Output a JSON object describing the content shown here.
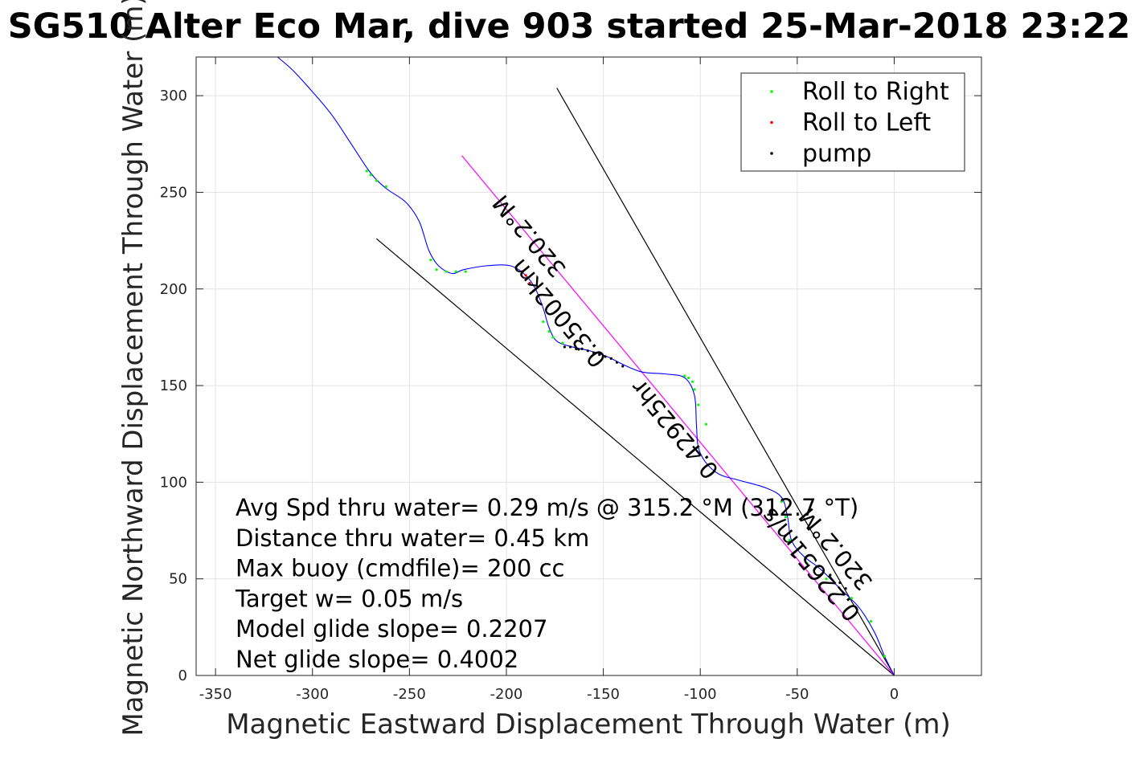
{
  "chart_data": {
    "type": "line",
    "title": "SG510 Alter Eco Mar, dive 903 started 25-Mar-2018 23:22",
    "xlabel": "Magnetic Eastward Displacement Through Water (m)",
    "ylabel": "Magnetic Northward Displacement Through Water (m)",
    "xlim": [
      -360,
      45
    ],
    "ylim": [
      0,
      320
    ],
    "xticks": [
      -350,
      -300,
      -250,
      -200,
      -150,
      -100,
      -50,
      0
    ],
    "yticks": [
      0,
      50,
      100,
      150,
      200,
      250,
      300
    ],
    "xtick_labels": [
      "-350",
      "-300",
      "-250",
      "-200",
      "-150",
      "-100",
      "-50",
      "0"
    ],
    "ytick_labels": [
      "0",
      "50",
      "100",
      "150",
      "200",
      "250",
      "300"
    ],
    "grid": true,
    "legend": {
      "placement": "top-right",
      "entries": [
        {
          "label": "Roll to Right",
          "color": "#00ff00"
        },
        {
          "label": "Roll to Left",
          "color": "#ff0000"
        },
        {
          "label": "pump",
          "color": "#000000"
        }
      ]
    },
    "track": {
      "color": "#0000ff",
      "points": [
        [
          0,
          0
        ],
        [
          -5,
          10
        ],
        [
          -10,
          22
        ],
        [
          -18,
          35
        ],
        [
          -28,
          45
        ],
        [
          -38,
          55
        ],
        [
          -47,
          62
        ],
        [
          -53,
          70
        ],
        [
          -55,
          82
        ],
        [
          -58,
          92
        ],
        [
          -66,
          97
        ],
        [
          -80,
          101
        ],
        [
          -90,
          104
        ],
        [
          -97,
          110
        ],
        [
          -101,
          118
        ],
        [
          -102,
          130
        ],
        [
          -103,
          145
        ],
        [
          -108,
          154
        ],
        [
          -118,
          156
        ],
        [
          -130,
          157
        ],
        [
          -140,
          161
        ],
        [
          -148,
          165
        ],
        [
          -157,
          168
        ],
        [
          -166,
          170
        ],
        [
          -174,
          173
        ],
        [
          -178,
          180
        ],
        [
          -181,
          190
        ],
        [
          -185,
          200
        ],
        [
          -190,
          207
        ],
        [
          -198,
          212
        ],
        [
          -210,
          212
        ],
        [
          -222,
          210
        ],
        [
          -228,
          208
        ],
        [
          -235,
          212
        ],
        [
          -240,
          220
        ],
        [
          -245,
          235
        ],
        [
          -252,
          245
        ],
        [
          -262,
          252
        ],
        [
          -270,
          260
        ],
        [
          -280,
          275
        ],
        [
          -290,
          290
        ],
        [
          -300,
          302
        ],
        [
          -310,
          313
        ],
        [
          -318,
          320
        ]
      ]
    },
    "markers": [
      {
        "kind": "roll_right",
        "color": "#00ff00",
        "x": [
          -5,
          -12,
          -22,
          -35,
          -45,
          -54,
          -56,
          -58,
          -97,
          -101,
          -103,
          -104,
          -106,
          -108,
          -171,
          -176,
          -178,
          -181,
          -221,
          -226,
          -231,
          -236,
          -239,
          -262,
          -267,
          -270,
          -272
        ],
        "y": [
          10,
          28,
          40,
          50,
          58,
          70,
          82,
          90,
          130,
          140,
          148,
          152,
          154,
          155,
          172,
          175,
          178,
          183,
          209,
          209,
          209,
          210,
          215,
          253,
          256,
          259,
          261
        ]
      },
      {
        "kind": "roll_left",
        "color": "#ff0000",
        "x": [
          -186,
          -188,
          -190,
          -192
        ],
        "y": [
          199,
          203,
          207,
          209
        ]
      },
      {
        "kind": "pump",
        "color": "#000000",
        "x": [
          -25,
          -28,
          -33,
          -140,
          -143,
          -146,
          -149,
          -152,
          -155,
          -158,
          -161,
          -164,
          -167,
          -170
        ],
        "y": [
          45,
          48,
          52,
          160,
          162,
          164,
          165,
          166,
          167,
          168,
          169,
          169,
          170,
          170
        ]
      }
    ],
    "bounding_lines": [
      {
        "color": "#000000",
        "from": [
          0,
          0
        ],
        "to": [
          -174,
          304
        ]
      },
      {
        "color": "#000000",
        "from": [
          0,
          0
        ],
        "to": [
          -267,
          226
        ]
      }
    ],
    "course_line": {
      "color": "#ff00ff",
      "from": [
        0,
        0
      ],
      "to": [
        -223,
        269
      ]
    },
    "line_labels": [
      {
        "text": "320.2°M",
        "x": -185,
        "y": 230,
        "angle_deg": 50
      },
      {
        "text": "0.35002km",
        "x": -170,
        "y": 190,
        "angle_deg": 50
      },
      {
        "text": "0.42925hr",
        "x": -110,
        "y": 130,
        "angle_deg": 50
      },
      {
        "text": "0.22651m/s",
        "x": -40,
        "y": 60,
        "angle_deg": 50
      },
      {
        "text": "320.2°M",
        "x": -27,
        "y": 68,
        "angle_deg": 50
      }
    ],
    "annotations": [
      "Avg Spd thru water=  0.29 m/s @ 315.2 °M (312.7 °T)",
      "Distance thru water=  0.45 km",
      "Max buoy (cmdfile)= 200 cc",
      "Target w= 0.05 m/s",
      "Model glide slope= 0.2207",
      "Net glide slope= 0.4002"
    ]
  }
}
